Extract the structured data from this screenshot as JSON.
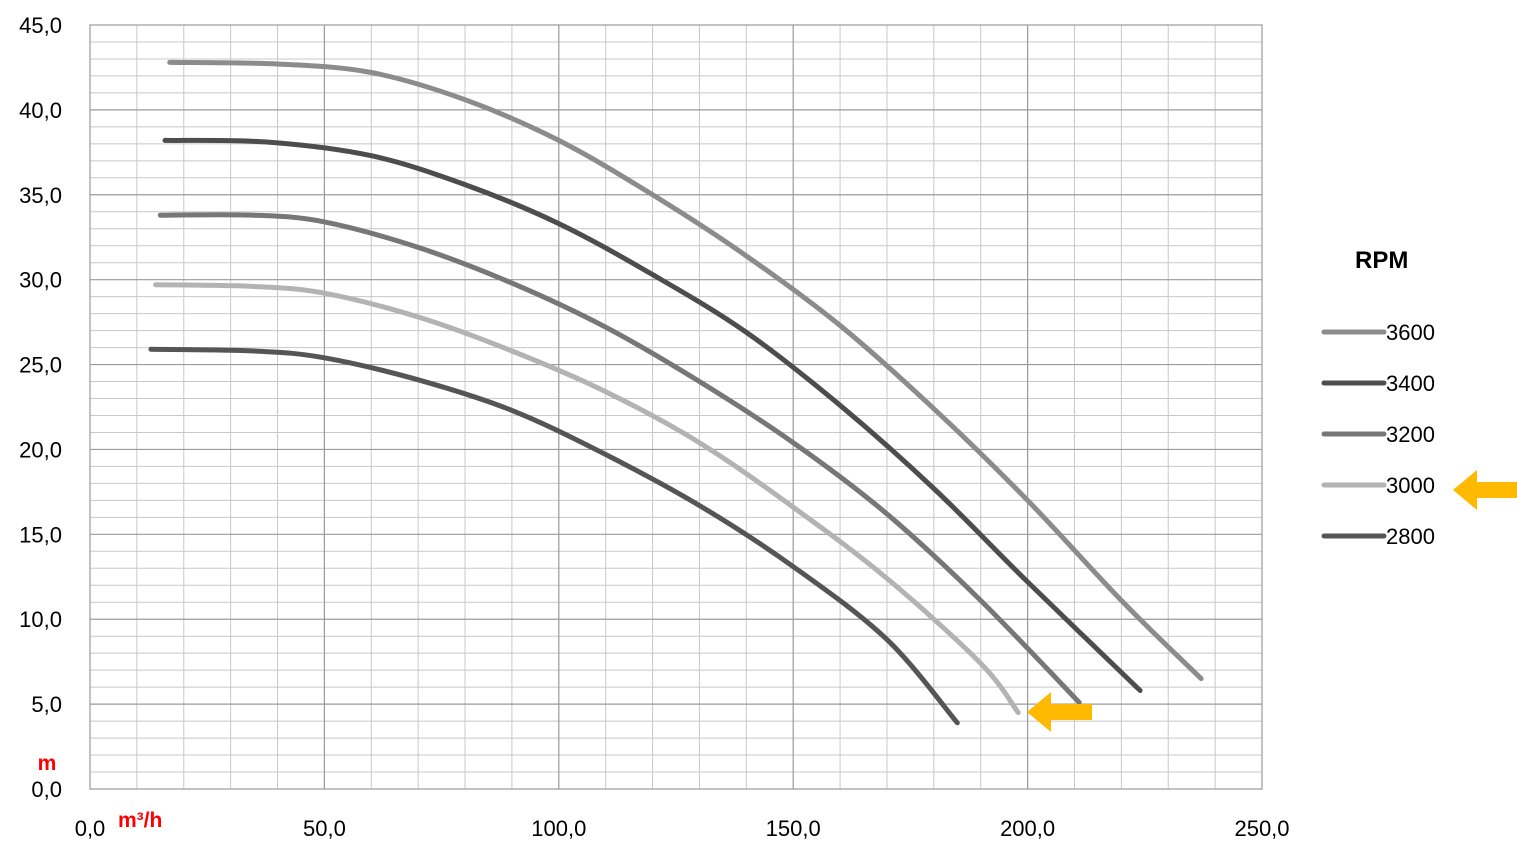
{
  "chart_data": {
    "type": "line",
    "title": "",
    "xlabel": "m³/h",
    "ylabel": "m",
    "xlim": [
      0,
      250
    ],
    "ylim": [
      0,
      45
    ],
    "x_ticks": [
      "0,0",
      "50,0",
      "100,0",
      "150,0",
      "200,0",
      "250,0"
    ],
    "y_ticks": [
      "0,0",
      "5,0",
      "10,0",
      "15,0",
      "20,0",
      "25,0",
      "30,0",
      "35,0",
      "40,0",
      "45,0"
    ],
    "grid": true,
    "legend_title": "RPM",
    "legend_position": "right",
    "highlighted_series": "3000",
    "highlight_color": "#ffb900",
    "series": [
      {
        "name": "3600",
        "color": "#8c8c8c",
        "points": [
          [
            17,
            42.8
          ],
          [
            40,
            42.7
          ],
          [
            60,
            42.2
          ],
          [
            80,
            40.6
          ],
          [
            100,
            38.2
          ],
          [
            120,
            35.0
          ],
          [
            140,
            31.4
          ],
          [
            160,
            27.3
          ],
          [
            180,
            22.4
          ],
          [
            200,
            17.0
          ],
          [
            220,
            11.1
          ],
          [
            237,
            6.5
          ]
        ]
      },
      {
        "name": "3400",
        "color": "#4d4d4d",
        "points": [
          [
            16,
            38.2
          ],
          [
            38,
            38.1
          ],
          [
            60,
            37.3
          ],
          [
            80,
            35.6
          ],
          [
            100,
            33.3
          ],
          [
            120,
            30.3
          ],
          [
            140,
            26.9
          ],
          [
            160,
            22.6
          ],
          [
            180,
            17.7
          ],
          [
            200,
            12.2
          ],
          [
            224,
            5.8
          ]
        ]
      },
      {
        "name": "3200",
        "color": "#777777",
        "points": [
          [
            15,
            33.8
          ],
          [
            35,
            33.8
          ],
          [
            50,
            33.4
          ],
          [
            70,
            31.9
          ],
          [
            90,
            29.8
          ],
          [
            110,
            27.2
          ],
          [
            130,
            24.0
          ],
          [
            150,
            20.4
          ],
          [
            170,
            16.2
          ],
          [
            190,
            11.1
          ],
          [
            211,
            5.1
          ]
        ]
      },
      {
        "name": "3000",
        "color": "#b3b3b3",
        "points": [
          [
            14,
            29.7
          ],
          [
            35,
            29.6
          ],
          [
            50,
            29.2
          ],
          [
            70,
            27.8
          ],
          [
            90,
            25.8
          ],
          [
            110,
            23.4
          ],
          [
            130,
            20.4
          ],
          [
            150,
            16.6
          ],
          [
            170,
            12.4
          ],
          [
            190,
            7.4
          ],
          [
            198,
            4.5
          ]
        ]
      },
      {
        "name": "2800",
        "color": "#555555",
        "points": [
          [
            13,
            25.9
          ],
          [
            35,
            25.8
          ],
          [
            50,
            25.4
          ],
          [
            70,
            24.1
          ],
          [
            90,
            22.3
          ],
          [
            110,
            19.7
          ],
          [
            130,
            16.7
          ],
          [
            150,
            13.1
          ],
          [
            170,
            8.8
          ],
          [
            185,
            3.9
          ]
        ]
      }
    ]
  }
}
